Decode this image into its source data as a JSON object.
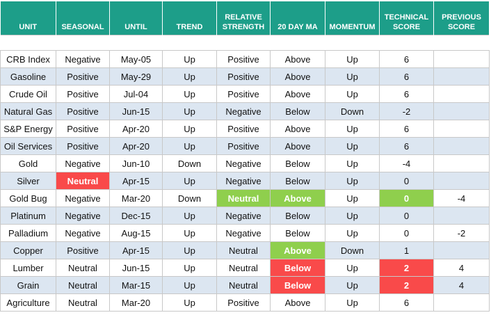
{
  "table": {
    "headers": [
      "UNIT",
      "SEASONAL",
      "UNTIL",
      "TREND",
      "RELATIVE STRENGTH",
      "20 DAY MA",
      "MOMENTUM",
      "TECHNICAL SCORE",
      "PREVIOUS SCORE"
    ],
    "rows": [
      [
        "CRB Index",
        "Negative",
        "May-05",
        "Up",
        "Positive",
        "Above",
        "Up",
        "6",
        null
      ],
      [
        "Gasoline",
        "Positive",
        "May-29",
        "Up",
        "Positive",
        "Above",
        "Up",
        "6",
        null
      ],
      [
        "Crude Oil",
        "Positive",
        "Jul-04",
        "Up",
        "Positive",
        "Above",
        "Up",
        "6",
        null
      ],
      [
        "Natural Gas",
        "Positive",
        "Jun-15",
        "Up",
        "Negative",
        "Below",
        "Down",
        "-2",
        null
      ],
      [
        "S&P Energy",
        "Positive",
        "Apr-20",
        "Up",
        "Positive",
        "Above",
        "Up",
        "6",
        null
      ],
      [
        "Oil Services",
        "Positive",
        "Apr-20",
        "Up",
        "Positive",
        "Above",
        "Up",
        "6",
        null
      ],
      [
        "Gold",
        "Negative",
        "Jun-10",
        "Down",
        "Negative",
        "Below",
        "Up",
        "-4",
        null
      ],
      [
        "Silver",
        "Neutral",
        "Apr-15",
        "Up",
        "Negative",
        "Below",
        "Up",
        "0",
        null
      ],
      [
        "Gold Bug",
        "Negative",
        "Mar-20",
        "Down",
        "Neutral",
        "Above",
        "Up",
        "0",
        "-4"
      ],
      [
        "Platinum",
        "Negative",
        "Dec-15",
        "Up",
        "Negative",
        "Below",
        "Up",
        "0",
        null
      ],
      [
        "Palladium",
        "Negative",
        "Aug-15",
        "Up",
        "Negative",
        "Below",
        "Up",
        "0",
        "-2"
      ],
      [
        "Copper",
        "Positive",
        "Apr-15",
        "Up",
        "Neutral",
        "Above",
        "Down",
        "1",
        null
      ],
      [
        "Lumber",
        "Neutral",
        "Jun-15",
        "Up",
        "Neutral",
        "Below",
        "Up",
        "2",
        "4"
      ],
      [
        "Grain",
        "Neutral",
        "Mar-15",
        "Up",
        "Neutral",
        "Below",
        "Up",
        "2",
        "4"
      ],
      [
        "Agriculture",
        "Neutral",
        "Mar-20",
        "Up",
        "Positive",
        "Above",
        "Up",
        "6",
        null
      ]
    ],
    "highlights": [
      {
        "row": 7,
        "col": 1,
        "color": "#f94a4a"
      },
      {
        "row": 8,
        "col": 4,
        "color": "#8fcf4d"
      },
      {
        "row": 8,
        "col": 5,
        "color": "#8fcf4d"
      },
      {
        "row": 8,
        "col": 7,
        "color": "#8fcf4d"
      },
      {
        "row": 11,
        "col": 5,
        "color": "#8fcf4d"
      },
      {
        "row": 12,
        "col": 5,
        "color": "#f94a4a"
      },
      {
        "row": 12,
        "col": 7,
        "color": "#f94a4a"
      },
      {
        "row": 13,
        "col": 5,
        "color": "#f94a4a"
      },
      {
        "row": 13,
        "col": 7,
        "color": "#f94a4a"
      }
    ]
  }
}
